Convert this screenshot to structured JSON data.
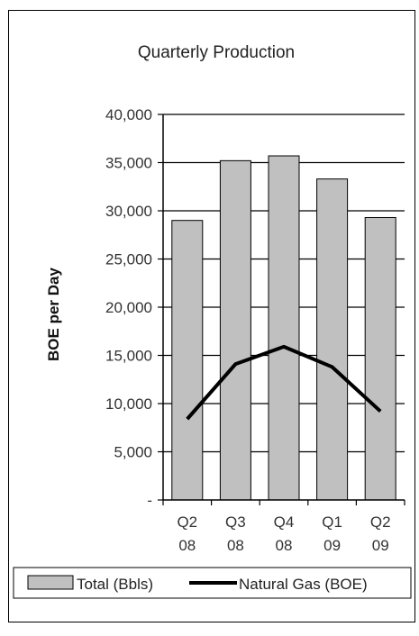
{
  "chart_data": {
    "type": "bar",
    "title": "Quarterly Production",
    "ylabel": "BOE per Day",
    "xlabel": "",
    "categories": [
      "Q2 08",
      "Q3 08",
      "Q4 08",
      "Q1 09",
      "Q2 09"
    ],
    "category_lines": [
      [
        "Q2",
        "08"
      ],
      [
        "Q3",
        "08"
      ],
      [
        "Q4",
        "08"
      ],
      [
        "Q1",
        "09"
      ],
      [
        "Q2",
        "09"
      ]
    ],
    "ylim": [
      0,
      40000
    ],
    "yticks": [
      0,
      5000,
      10000,
      15000,
      20000,
      25000,
      30000,
      35000,
      40000
    ],
    "ytick_labels": [
      "-",
      "5,000",
      "10,000",
      "15,000",
      "20,000",
      "25,000",
      "30,000",
      "35,000",
      "40,000"
    ],
    "grid": true,
    "legend_position": "bottom",
    "series": [
      {
        "name": "Total (Bbls)",
        "kind": "bar",
        "color": "#c0c0c0",
        "values": [
          29000,
          35200,
          35700,
          33300,
          29300
        ]
      },
      {
        "name": "Natural Gas (BOE)",
        "kind": "line",
        "color": "#000000",
        "values": [
          8400,
          14100,
          15900,
          13800,
          9200
        ]
      }
    ]
  }
}
